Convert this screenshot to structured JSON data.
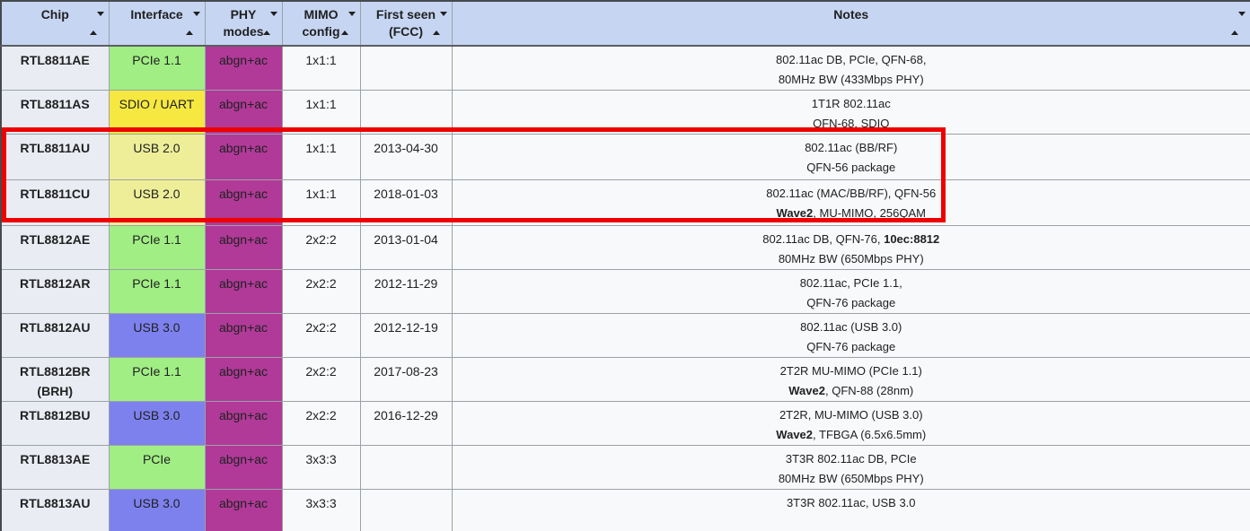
{
  "colors": {
    "header_bg": "#c6d5f2",
    "pcie_green": "#a1ee84",
    "sdio_uart_yellow": "#f6e840",
    "usb2_pale_yellow": "#eeee99",
    "usb3_blue": "#7d81ee",
    "phy_magenta": "#b13a98",
    "highlight_red": "#ee0000",
    "chip_col_bg": "#eaecf3",
    "row_bg": "#f8f9fa"
  },
  "highlight": {
    "color": "#ee0000",
    "rows": [
      "RTL8811AU",
      "RTL8811CU"
    ]
  },
  "table": {
    "columns": [
      {
        "id": "chip",
        "label_lines": [
          "Chip"
        ]
      },
      {
        "id": "interface",
        "label_lines": [
          "Interface"
        ]
      },
      {
        "id": "phy",
        "label_lines": [
          "PHY",
          "modes"
        ]
      },
      {
        "id": "mimo",
        "label_lines": [
          "MIMO",
          "config"
        ]
      },
      {
        "id": "first",
        "label_lines": [
          "First seen",
          "(FCC)"
        ]
      },
      {
        "id": "notes",
        "label_lines": [
          "Notes"
        ]
      }
    ],
    "rows": [
      {
        "chip_lines": [
          "RTL8811AE"
        ],
        "interface": {
          "label": "PCIe 1.1",
          "color": "#a1ee84"
        },
        "phy": {
          "label": "abgn+ac",
          "color": "#b13a98"
        },
        "mimo": "1x1:1",
        "first_seen": "",
        "notes": [
          [
            {
              "text": "802.11ac DB, PCIe, QFN-68,",
              "bold": false
            }
          ],
          [
            {
              "text": "80MHz BW (433Mbps PHY)",
              "bold": false
            }
          ]
        ]
      },
      {
        "chip_lines": [
          "RTL8811AS"
        ],
        "interface": {
          "label": "SDIO / UART",
          "color": "#f6e840"
        },
        "phy": {
          "label": "abgn+ac",
          "color": "#b13a98"
        },
        "mimo": "1x1:1",
        "first_seen": "",
        "notes": [
          [
            {
              "text": "1T1R 802.11ac",
              "bold": false
            }
          ],
          [
            {
              "text": "QFN-68, SDIO",
              "bold": false
            }
          ]
        ]
      },
      {
        "chip_lines": [
          "RTL8811AU"
        ],
        "highlighted": true,
        "interface": {
          "label": "USB 2.0",
          "color": "#eeee99"
        },
        "phy": {
          "label": "abgn+ac",
          "color": "#b13a98"
        },
        "mimo": "1x1:1",
        "first_seen": "2013-04-30",
        "notes": [
          [
            {
              "text": "802.11ac (BB/RF)",
              "bold": false
            }
          ],
          [
            {
              "text": "QFN-56 package",
              "bold": false
            }
          ]
        ]
      },
      {
        "chip_lines": [
          "RTL8811CU"
        ],
        "highlighted": true,
        "interface": {
          "label": "USB 2.0",
          "color": "#eeee99"
        },
        "phy": {
          "label": "abgn+ac",
          "color": "#b13a98"
        },
        "mimo": "1x1:1",
        "first_seen": "2018-01-03",
        "notes": [
          [
            {
              "text": "802.11ac (MAC/BB/RF), QFN-56",
              "bold": false
            }
          ],
          [
            {
              "text": "Wave2",
              "bold": true
            },
            {
              "text": ", MU-MIMO, 256QAM",
              "bold": false
            }
          ]
        ]
      },
      {
        "chip_lines": [
          "RTL8812AE"
        ],
        "interface": {
          "label": "PCIe 1.1",
          "color": "#a1ee84"
        },
        "phy": {
          "label": "abgn+ac",
          "color": "#b13a98"
        },
        "mimo": "2x2:2",
        "first_seen": "2013-01-04",
        "notes": [
          [
            {
              "text": "802.11ac DB, QFN-76, ",
              "bold": false
            },
            {
              "text": "10ec:8812",
              "bold": true
            }
          ],
          [
            {
              "text": "80MHz BW (650Mbps PHY)",
              "bold": false
            }
          ]
        ]
      },
      {
        "chip_lines": [
          "RTL8812AR"
        ],
        "interface": {
          "label": "PCIe 1.1",
          "color": "#a1ee84"
        },
        "phy": {
          "label": "abgn+ac",
          "color": "#b13a98"
        },
        "mimo": "2x2:2",
        "first_seen": "2012-11-29",
        "notes": [
          [
            {
              "text": "802.11ac, PCIe 1.1,",
              "bold": false
            }
          ],
          [
            {
              "text": "QFN-76 package",
              "bold": false
            }
          ]
        ]
      },
      {
        "chip_lines": [
          "RTL8812AU"
        ],
        "interface": {
          "label": "USB 3.0",
          "color": "#7d81ee"
        },
        "phy": {
          "label": "abgn+ac",
          "color": "#b13a98"
        },
        "mimo": "2x2:2",
        "first_seen": "2012-12-19",
        "notes": [
          [
            {
              "text": "802.11ac (USB 3.0)",
              "bold": false
            }
          ],
          [
            {
              "text": "QFN-76 package",
              "bold": false
            }
          ]
        ]
      },
      {
        "chip_lines": [
          "RTL8812BR",
          "(BRH)"
        ],
        "interface": {
          "label": "PCIe 1.1",
          "color": "#a1ee84"
        },
        "phy": {
          "label": "abgn+ac",
          "color": "#b13a98"
        },
        "mimo": "2x2:2",
        "first_seen": "2017-08-23",
        "notes": [
          [
            {
              "text": "2T2R MU-MIMO (PCIe 1.1)",
              "bold": false
            }
          ],
          [
            {
              "text": "Wave2",
              "bold": true
            },
            {
              "text": ", QFN-88 (28nm)",
              "bold": false
            }
          ]
        ]
      },
      {
        "chip_lines": [
          "RTL8812BU"
        ],
        "interface": {
          "label": "USB 3.0",
          "color": "#7d81ee"
        },
        "phy": {
          "label": "abgn+ac",
          "color": "#b13a98"
        },
        "mimo": "2x2:2",
        "first_seen": "2016-12-29",
        "notes": [
          [
            {
              "text": "2T2R, MU-MIMO (USB 3.0)",
              "bold": false
            }
          ],
          [
            {
              "text": "Wave2",
              "bold": true
            },
            {
              "text": ", TFBGA (6.5x6.5mm)",
              "bold": false
            }
          ]
        ]
      },
      {
        "chip_lines": [
          "RTL8813AE"
        ],
        "interface": {
          "label": "PCIe",
          "color": "#a1ee84"
        },
        "phy": {
          "label": "abgn+ac",
          "color": "#b13a98"
        },
        "mimo": "3x3:3",
        "first_seen": "",
        "notes": [
          [
            {
              "text": "3T3R 802.11ac DB, PCIe",
              "bold": false
            }
          ],
          [
            {
              "text": "80MHz BW (650Mbps PHY)",
              "bold": false
            }
          ]
        ]
      },
      {
        "chip_lines": [
          "RTL8813AU"
        ],
        "interface": {
          "label": "USB 3.0",
          "color": "#7d81ee"
        },
        "phy": {
          "label": "abgn+ac",
          "color": "#b13a98"
        },
        "mimo": "3x3:3",
        "first_seen": "",
        "notes": [
          [
            {
              "text": "3T3R 802.11ac, USB 3.0",
              "bold": false
            }
          ]
        ]
      },
      {
        "chip_lines": [],
        "partial": true,
        "interface": {
          "label": "",
          "color": "#a1ee84"
        },
        "phy": {
          "label": "",
          "color": "#b13a98"
        },
        "mimo": "",
        "first_seen": "",
        "notes": []
      }
    ]
  }
}
